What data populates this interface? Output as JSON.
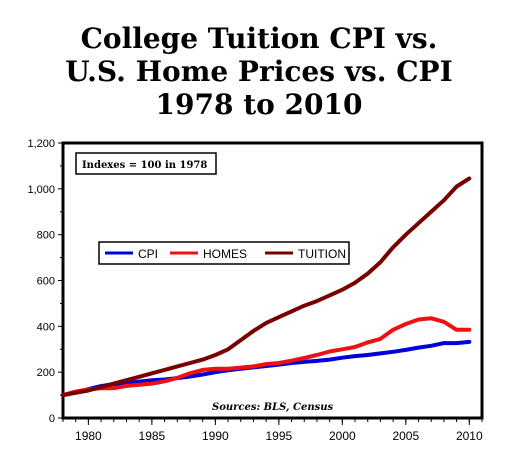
{
  "title_lines": [
    "College Tuition CPI vs.",
    "U.S. Home Prices vs. CPI",
    "1978 to 2010"
  ],
  "chart_data": {
    "type": "line",
    "title": "College Tuition CPI vs. U.S. Home Prices vs. CPI 1978 to 2010",
    "xlabel": "",
    "ylabel": "",
    "xlim": [
      1978,
      2011
    ],
    "ylim": [
      0,
      1200
    ],
    "x_ticks": [
      1980,
      1985,
      1990,
      1995,
      2000,
      2005,
      2010
    ],
    "y_ticks": [
      0,
      200,
      400,
      600,
      800,
      1000,
      1200
    ],
    "y_tick_labels": [
      "0",
      "200",
      "400",
      "600",
      "800",
      "1,000",
      "1,200"
    ],
    "grid": false,
    "legend_position": "middle-left",
    "annotations": {
      "index_note": "Indexes = 100 in 1978",
      "sources": "Sources: BLS, Census"
    },
    "x": [
      1978,
      1979,
      1980,
      1981,
      1982,
      1983,
      1984,
      1985,
      1986,
      1987,
      1988,
      1989,
      1990,
      1991,
      1992,
      1993,
      1994,
      1995,
      1996,
      1997,
      1998,
      1999,
      2000,
      2001,
      2002,
      2003,
      2004,
      2005,
      2006,
      2007,
      2008,
      2009,
      2010
    ],
    "series": [
      {
        "name": "CPI",
        "color": "#0000dd",
        "values": [
          100,
          111,
          126,
          139,
          148,
          152,
          159,
          165,
          168,
          174,
          181,
          190,
          200,
          208,
          215,
          221,
          227,
          233,
          240,
          245,
          249,
          255,
          263,
          270,
          275,
          282,
          289,
          297,
          307,
          315,
          327,
          327,
          332
        ]
      },
      {
        "name": "HOMES",
        "color": "#ee1111",
        "values": [
          100,
          115,
          125,
          130,
          130,
          140,
          145,
          150,
          160,
          175,
          195,
          210,
          215,
          215,
          220,
          225,
          235,
          240,
          250,
          262,
          275,
          290,
          300,
          310,
          330,
          345,
          385,
          410,
          430,
          435,
          420,
          385,
          385
        ]
      },
      {
        "name": "TUITION",
        "color": "#7a0000",
        "values": [
          100,
          110,
          120,
          135,
          150,
          165,
          180,
          195,
          210,
          225,
          240,
          255,
          275,
          300,
          340,
          380,
          415,
          440,
          465,
          490,
          510,
          535,
          560,
          590,
          630,
          680,
          745,
          800,
          850,
          900,
          950,
          1010,
          1045
        ]
      }
    ]
  }
}
